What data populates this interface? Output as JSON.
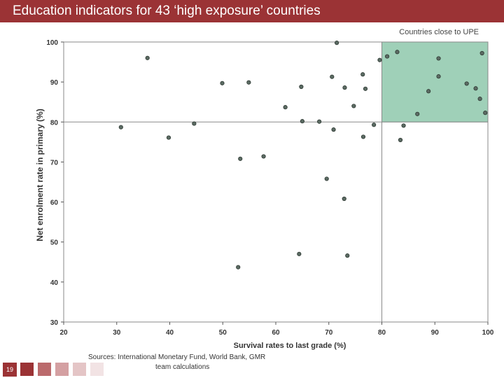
{
  "header": {
    "title": "Education indicators for 43 ‘high exposure’ countries"
  },
  "highlight": {
    "label": "Countries close to UPE",
    "x_min": 80,
    "y_min": 80,
    "color": "#9fd0b8"
  },
  "footer": {
    "sources_line1": "Sources: International Monetary Fund, World Bank, GMR",
    "sources_line2": "team calculations",
    "page_number": "19",
    "swatches": [
      "#9b3335",
      "#bb6a6c",
      "#d4a0a2",
      "#e4c5c6",
      "#f2e3e4"
    ]
  },
  "chart_data": {
    "type": "scatter",
    "title": "",
    "xlabel": "Survival rates to last grade (%)",
    "ylabel": "Net enrolment rate in primary (%)",
    "xlim": [
      20,
      100
    ],
    "ylim": [
      30,
      100
    ],
    "x_ticks": [
      20,
      30,
      40,
      50,
      60,
      70,
      80,
      90,
      100
    ],
    "y_ticks": [
      30,
      40,
      50,
      60,
      70,
      80,
      90,
      100
    ],
    "reference_lines": {
      "x": 80,
      "y": 80
    },
    "grid": false,
    "point_color": "#5b6b63",
    "points": [
      {
        "x": 71.5,
        "y": 99.8
      },
      {
        "x": 35.8,
        "y": 96.0
      },
      {
        "x": 81.0,
        "y": 96.4
      },
      {
        "x": 82.9,
        "y": 97.5
      },
      {
        "x": 79.6,
        "y": 95.5
      },
      {
        "x": 90.7,
        "y": 95.9
      },
      {
        "x": 98.9,
        "y": 97.2
      },
      {
        "x": 70.6,
        "y": 91.3
      },
      {
        "x": 76.4,
        "y": 91.9
      },
      {
        "x": 49.9,
        "y": 89.7
      },
      {
        "x": 54.9,
        "y": 89.9
      },
      {
        "x": 64.8,
        "y": 88.8
      },
      {
        "x": 73.0,
        "y": 88.6
      },
      {
        "x": 76.9,
        "y": 88.3
      },
      {
        "x": 90.7,
        "y": 91.4
      },
      {
        "x": 88.8,
        "y": 87.7
      },
      {
        "x": 96.0,
        "y": 89.6
      },
      {
        "x": 97.7,
        "y": 88.4
      },
      {
        "x": 98.5,
        "y": 85.8
      },
      {
        "x": 61.8,
        "y": 83.7
      },
      {
        "x": 74.7,
        "y": 84.0
      },
      {
        "x": 86.7,
        "y": 82.0
      },
      {
        "x": 99.5,
        "y": 82.3
      },
      {
        "x": 65.0,
        "y": 80.2
      },
      {
        "x": 68.2,
        "y": 80.1
      },
      {
        "x": 44.6,
        "y": 79.6
      },
      {
        "x": 30.8,
        "y": 78.7
      },
      {
        "x": 70.9,
        "y": 78.1
      },
      {
        "x": 78.5,
        "y": 79.3
      },
      {
        "x": 84.1,
        "y": 79.1
      },
      {
        "x": 39.8,
        "y": 76.1
      },
      {
        "x": 76.5,
        "y": 76.3
      },
      {
        "x": 83.5,
        "y": 75.5
      },
      {
        "x": 57.7,
        "y": 71.4
      },
      {
        "x": 53.3,
        "y": 70.8
      },
      {
        "x": 69.6,
        "y": 65.8
      },
      {
        "x": 72.9,
        "y": 60.8
      },
      {
        "x": 64.4,
        "y": 47.0
      },
      {
        "x": 73.5,
        "y": 46.6
      },
      {
        "x": 52.9,
        "y": 43.7
      }
    ]
  }
}
